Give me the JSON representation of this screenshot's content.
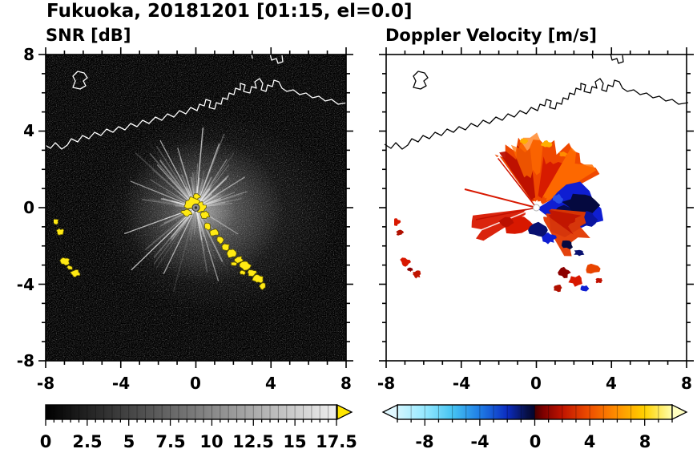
{
  "figure": {
    "title": "Fukuoka, 20181201 [01:15, el=0.0]"
  },
  "panels": {
    "snr": {
      "title": "SNR [dB]",
      "x_tick_labels": [
        "-8",
        "-4",
        "0",
        "4",
        "8"
      ],
      "y_tick_labels": [
        "8",
        "4",
        "0",
        "-4",
        "-8"
      ],
      "colorbar": {
        "tick_labels": [
          "0",
          "2.5",
          "5",
          "7.5",
          "10",
          "12.5",
          "15",
          "17.5"
        ],
        "range": [
          0,
          17.5
        ],
        "scheme": "grayscale black to white",
        "over_arrow_color": "#ffe600"
      }
    },
    "doppler": {
      "title": "Doppler Velocity [m/s]",
      "x_tick_labels": [
        "-8",
        "-4",
        "0",
        "4",
        "8"
      ],
      "colorbar": {
        "tick_labels": [
          "-8",
          "-4",
          "0",
          "4",
          "8"
        ],
        "range": [
          -10,
          10
        ],
        "scheme": "cyan-blue-navy negatives, darkred-red-orange-yellow positives",
        "under_arrow_color": "#e0f8ff",
        "over_arrow_color": "#ffffc0"
      }
    }
  },
  "chart_data": [
    {
      "type": "heatmap",
      "title": "SNR [dB]",
      "xlim": [
        -8,
        8
      ],
      "ylim": [
        -8,
        8
      ],
      "x_ticks": [
        -8,
        -4,
        0,
        4,
        8
      ],
      "y_ticks": [
        -8,
        -4,
        0,
        4,
        8
      ],
      "grid": false,
      "colorbar": {
        "ticks": [
          0,
          2.5,
          5,
          7.5,
          10,
          12.5,
          15,
          17.5
        ],
        "range": [
          0,
          17.5
        ],
        "colormap": "grays",
        "over_color": "yellow"
      },
      "background": "low SNR (0-3 dB) dark noise speckle",
      "features": [
        {
          "label": "radar site",
          "x": 0,
          "y": 0
        },
        {
          "label": "radial interference spokes",
          "style": "white-gray rays from origin, mainly NW-N-NE and SW sectors, range 1-4"
        },
        {
          "label": "diffuse moderate-SNR halo",
          "center": [
            0.5,
            0.2
          ],
          "radius": 3.5
        },
        {
          "label": "strong echo cluster (>17.5 dB, yellow)",
          "x_range": [
            -0.7,
            0.9
          ],
          "y_range": [
            -0.7,
            0.5
          ]
        },
        {
          "label": "strong echo arc (>17.5 dB, yellow)",
          "points": [
            [
              0.6,
              -1.0
            ],
            [
              1.0,
              -1.3
            ],
            [
              1.3,
              -1.7
            ],
            [
              1.6,
              -2.1
            ],
            [
              2.0,
              -2.4
            ],
            [
              2.3,
              -2.7
            ],
            [
              2.7,
              -3.1
            ],
            [
              3.0,
              -3.5
            ],
            [
              3.3,
              -3.8
            ],
            [
              3.6,
              -4.2
            ]
          ]
        },
        {
          "label": "strong echo patches west (>17.5 dB, yellow)",
          "points": [
            [
              -7.5,
              -0.7
            ],
            [
              -7.2,
              -1.3
            ],
            [
              -7.0,
              -2.9
            ],
            [
              -6.4,
              -3.6
            ]
          ]
        },
        {
          "label": "coastline",
          "style": "white outline across northern half, y ~3 to 7"
        }
      ]
    },
    {
      "type": "heatmap",
      "title": "Doppler Velocity [m/s]",
      "xlim": [
        -8,
        8
      ],
      "ylim": [
        -8,
        8
      ],
      "x_ticks": [
        -8,
        -4,
        0,
        4,
        8
      ],
      "y_ticks": [
        -8,
        -4,
        0,
        4,
        8
      ],
      "grid": false,
      "colorbar": {
        "ticks": [
          -8,
          -4,
          0,
          4,
          8
        ],
        "range": [
          -10,
          10
        ],
        "colormap": "cyan-blue-navy to darkred-red-orange-yellow diverging"
      },
      "features": [
        {
          "label": "radar site",
          "x": 0,
          "y": 0
        },
        {
          "label": "positive-velocity fan (+2 to +6 m/s, red-orange)",
          "azimuth_deg": [
            -38,
            62
          ],
          "range": [
            0.5,
            3.9
          ]
        },
        {
          "label": "negative-velocity lobe (-2 to -8 m/s, blue-navy)",
          "x_range": [
            0.5,
            3.3
          ],
          "y_range": [
            -1.7,
            1.3
          ]
        },
        {
          "label": "positive patch SE (+2 to +5 m/s)",
          "x_range": [
            1.0,
            3.0
          ],
          "y_range": [
            -2.6,
            -0.8
          ]
        },
        {
          "label": "mixed small patches S",
          "points": [
            [
              1.5,
              -3.5
            ],
            [
              2.2,
              -3.9
            ],
            [
              3.0,
              -3.3
            ],
            [
              1.2,
              -4.2
            ]
          ]
        },
        {
          "label": "positive wedge SW (+3 to +5 m/s)",
          "azimuth_deg": [
            238,
            263
          ],
          "range": [
            0.7,
            3.5
          ]
        },
        {
          "label": "negative patch just S of site",
          "x_range": [
            -0.4,
            0.9
          ],
          "y_range": [
            -1.8,
            -0.6
          ]
        },
        {
          "label": "positive block W of site",
          "x_range": [
            -2.0,
            -0.5
          ],
          "y_range": [
            -1.5,
            -0.5
          ]
        },
        {
          "label": "isolated positive patches west",
          "points": [
            [
              -7.5,
              -0.7
            ],
            [
              -7.2,
              -1.3
            ],
            [
              -7.0,
              -2.9
            ],
            [
              -6.4,
              -3.6
            ]
          ]
        },
        {
          "label": "coastline",
          "style": "black outline across northern half, y ~3 to 7"
        }
      ]
    }
  ]
}
